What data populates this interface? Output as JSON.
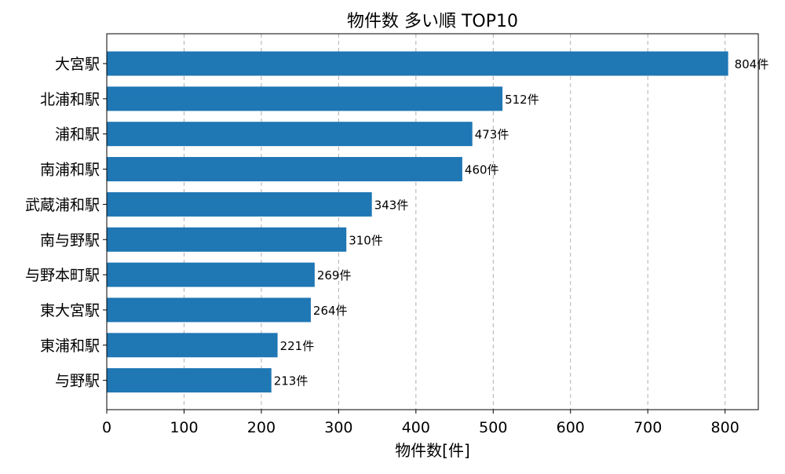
{
  "chart_data": {
    "type": "bar",
    "orientation": "horizontal",
    "title": "物件数 多い順 TOP10",
    "xlabel": "物件数[件]",
    "ylabel": "",
    "categories": [
      "大宮駅",
      "北浦和駅",
      "浦和駅",
      "南浦和駅",
      "武蔵浦和駅",
      "南与野駅",
      "与野本町駅",
      "東大宮駅",
      "東浦和駅",
      "与野駅"
    ],
    "values": [
      804,
      512,
      473,
      460,
      343,
      310,
      269,
      264,
      221,
      213
    ],
    "data_labels": [
      "804件",
      "512件",
      "473件",
      "460件",
      "343件",
      "310件",
      "269件",
      "264件",
      "221件",
      "213件"
    ],
    "xlim": [
      0,
      843
    ],
    "xticks": [
      0,
      100,
      200,
      300,
      400,
      500,
      600,
      700,
      800
    ],
    "xtick_labels": [
      "0",
      "100",
      "200",
      "300",
      "400",
      "500",
      "600",
      "700",
      "800"
    ],
    "grid": "x-dashed",
    "legend": "none",
    "bar_color": "#1f77b4"
  }
}
